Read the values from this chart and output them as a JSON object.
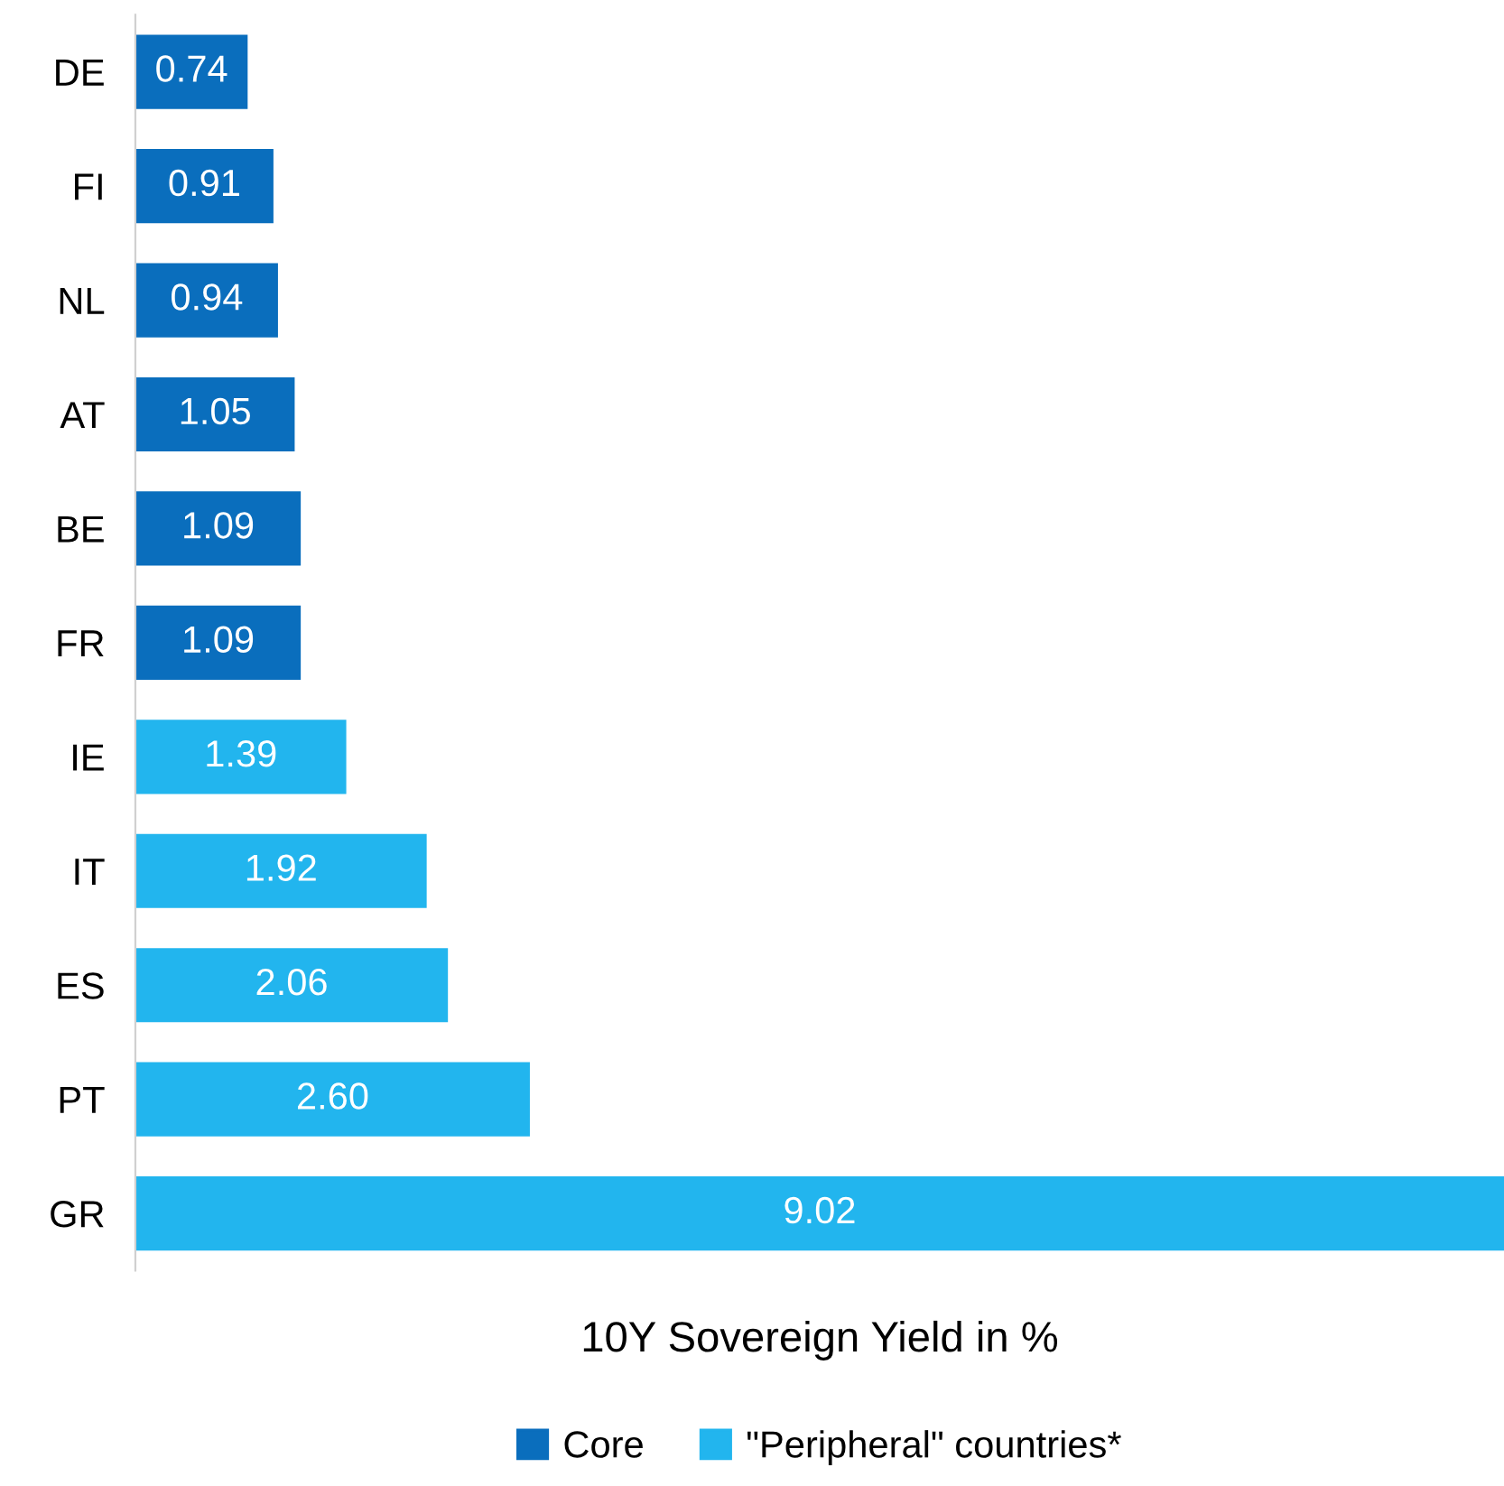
{
  "chart_data": {
    "type": "bar",
    "orientation": "horizontal",
    "categories": [
      "DE",
      "FI",
      "NL",
      "AT",
      "BE",
      "FR",
      "IE",
      "IT",
      "ES",
      "PT",
      "GR"
    ],
    "series": [
      {
        "name": "Core",
        "color": "#0a6ebd",
        "values": [
          0.74,
          0.91,
          0.94,
          1.05,
          1.09,
          1.09,
          null,
          null,
          null,
          null,
          null
        ],
        "value_labels": [
          "0.74",
          "0.91",
          "0.94",
          "1.05",
          "1.09",
          "1.09",
          null,
          null,
          null,
          null,
          null
        ]
      },
      {
        "name": "\"Peripheral\" countries*",
        "color": "#22b5ee",
        "values": [
          null,
          null,
          null,
          null,
          null,
          null,
          1.39,
          1.92,
          2.06,
          2.6,
          9.02
        ],
        "value_labels": [
          null,
          null,
          null,
          null,
          null,
          null,
          "1.39",
          "1.92",
          "2.06",
          "2.60",
          "9.02"
        ]
      }
    ],
    "xlabel": "10Y Sovereign Yield in %",
    "tick_labels": "y",
    "legend": "bottom",
    "grid": false
  }
}
